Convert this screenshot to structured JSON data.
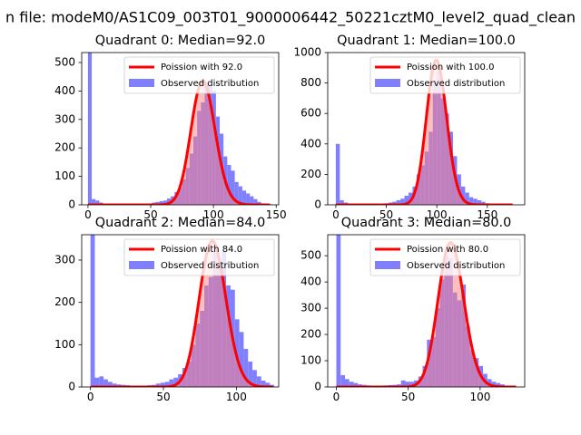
{
  "suptitle": "n file: modeM0/AS1C09_003T01_9000006442_50221cztM0_level2_quad_clean",
  "colors": {
    "hist": "#8080ff",
    "poisson": "#ff0000",
    "poisson_fill": "#ff8080"
  },
  "chart_data": [
    {
      "type": "bar",
      "title": "Quadrant 0: Median=92.0",
      "median": 92.0,
      "legend": {
        "line": "Poission with 92.0",
        "hist": "Observed distribution",
        "placement": "upper right"
      },
      "xlim": [
        -5,
        152
      ],
      "ylim": [
        0,
        535
      ],
      "xticks": [
        0,
        50,
        100,
        150
      ],
      "yticks": [
        0,
        100,
        200,
        300,
        400,
        500
      ],
      "bins": [
        [
          0,
          560
        ],
        [
          3,
          20
        ],
        [
          6,
          15
        ],
        [
          9,
          8
        ],
        [
          12,
          4
        ],
        [
          15,
          2
        ],
        [
          18,
          2
        ],
        [
          21,
          1
        ],
        [
          24,
          1
        ],
        [
          27,
          1
        ],
        [
          30,
          1
        ],
        [
          33,
          1
        ],
        [
          36,
          1
        ],
        [
          39,
          1
        ],
        [
          42,
          2
        ],
        [
          45,
          3
        ],
        [
          48,
          3
        ],
        [
          51,
          8
        ],
        [
          54,
          10
        ],
        [
          57,
          13
        ],
        [
          60,
          15
        ],
        [
          63,
          22
        ],
        [
          66,
          30
        ],
        [
          69,
          45
        ],
        [
          72,
          60
        ],
        [
          75,
          90
        ],
        [
          78,
          130
        ],
        [
          81,
          180
        ],
        [
          84,
          240
        ],
        [
          87,
          330
        ],
        [
          90,
          360
        ],
        [
          93,
          430
        ],
        [
          96,
          420
        ],
        [
          99,
          400
        ],
        [
          102,
          310
        ],
        [
          105,
          250
        ],
        [
          108,
          170
        ],
        [
          111,
          140
        ],
        [
          114,
          120
        ],
        [
          117,
          80
        ],
        [
          120,
          65
        ],
        [
          123,
          50
        ],
        [
          126,
          40
        ],
        [
          129,
          30
        ],
        [
          132,
          20
        ],
        [
          135,
          10
        ],
        [
          138,
          5
        ],
        [
          141,
          3
        ],
        [
          144,
          2
        ]
      ],
      "poisson_peak": 435,
      "poisson_x": [
        0,
        145
      ]
    },
    {
      "type": "bar",
      "title": "Quadrant 1: Median=100.0",
      "median": 100.0,
      "legend": {
        "line": "Poission with 100.0",
        "hist": "Observed distribution",
        "placement": "upper right"
      },
      "xlim": [
        -8,
        187
      ],
      "ylim": [
        0,
        1000
      ],
      "xticks": [
        0,
        50,
        100,
        150
      ],
      "yticks": [
        0,
        200,
        400,
        600,
        800,
        1000
      ],
      "bins": [
        [
          0,
          400
        ],
        [
          4,
          30
        ],
        [
          8,
          15
        ],
        [
          12,
          8
        ],
        [
          16,
          5
        ],
        [
          20,
          4
        ],
        [
          24,
          3
        ],
        [
          28,
          3
        ],
        [
          32,
          3
        ],
        [
          36,
          3
        ],
        [
          40,
          4
        ],
        [
          44,
          6
        ],
        [
          48,
          10
        ],
        [
          52,
          15
        ],
        [
          56,
          20
        ],
        [
          60,
          30
        ],
        [
          64,
          40
        ],
        [
          68,
          60
        ],
        [
          72,
          80
        ],
        [
          76,
          120
        ],
        [
          80,
          200
        ],
        [
          84,
          260
        ],
        [
          88,
          350
        ],
        [
          92,
          480
        ],
        [
          96,
          820
        ],
        [
          100,
          880
        ],
        [
          104,
          700
        ],
        [
          108,
          600
        ],
        [
          112,
          480
        ],
        [
          116,
          320
        ],
        [
          120,
          200
        ],
        [
          124,
          120
        ],
        [
          128,
          80
        ],
        [
          132,
          50
        ],
        [
          136,
          40
        ],
        [
          140,
          30
        ],
        [
          144,
          20
        ],
        [
          148,
          10
        ],
        [
          152,
          6
        ],
        [
          156,
          4
        ],
        [
          160,
          3
        ],
        [
          164,
          2
        ],
        [
          168,
          1
        ],
        [
          172,
          1
        ]
      ],
      "poisson_peak": 950,
      "poisson_x": [
        0,
        175
      ]
    },
    {
      "type": "bar",
      "title": "Quadrant 2: Median=84.0",
      "median": 84.0,
      "legend": {
        "line": "Poission with 84.0",
        "hist": "Observed distribution",
        "placement": "upper right"
      },
      "xlim": [
        -6,
        129
      ],
      "ylim": [
        0,
        360
      ],
      "xticks": [
        0,
        50,
        100
      ],
      "yticks": [
        0,
        100,
        200,
        300
      ],
      "bins": [
        [
          0,
          370
        ],
        [
          3,
          22
        ],
        [
          6,
          25
        ],
        [
          9,
          18
        ],
        [
          12,
          12
        ],
        [
          15,
          8
        ],
        [
          18,
          6
        ],
        [
          21,
          5
        ],
        [
          24,
          4
        ],
        [
          27,
          3
        ],
        [
          30,
          3
        ],
        [
          33,
          3
        ],
        [
          36,
          3
        ],
        [
          39,
          4
        ],
        [
          42,
          5
        ],
        [
          45,
          8
        ],
        [
          48,
          10
        ],
        [
          51,
          12
        ],
        [
          54,
          18
        ],
        [
          57,
          22
        ],
        [
          60,
          30
        ],
        [
          63,
          45
        ],
        [
          66,
          60
        ],
        [
          69,
          100
        ],
        [
          72,
          150
        ],
        [
          75,
          180
        ],
        [
          78,
          240
        ],
        [
          81,
          260
        ],
        [
          84,
          320
        ],
        [
          87,
          280
        ],
        [
          90,
          320
        ],
        [
          93,
          240
        ],
        [
          96,
          230
        ],
        [
          99,
          160
        ],
        [
          102,
          130
        ],
        [
          105,
          90
        ],
        [
          108,
          60
        ],
        [
          111,
          40
        ],
        [
          114,
          25
        ],
        [
          117,
          15
        ],
        [
          120,
          10
        ],
        [
          123,
          5
        ]
      ],
      "poisson_peak": 345,
      "poisson_x": [
        0,
        125
      ]
    },
    {
      "type": "bar",
      "title": "Quadrant 3: Median=80.0",
      "median": 80.0,
      "legend": {
        "line": "Poission with 80.0",
        "hist": "Observed distribution",
        "placement": "upper right"
      },
      "xlim": [
        -6,
        131
      ],
      "ylim": [
        0,
        580
      ],
      "xticks": [
        0,
        50,
        100
      ],
      "yticks": [
        0,
        100,
        200,
        300,
        400,
        500
      ],
      "bins": [
        [
          0,
          590
        ],
        [
          3,
          45
        ],
        [
          6,
          30
        ],
        [
          9,
          20
        ],
        [
          12,
          15
        ],
        [
          15,
          10
        ],
        [
          18,
          8
        ],
        [
          21,
          6
        ],
        [
          24,
          5
        ],
        [
          27,
          5
        ],
        [
          30,
          5
        ],
        [
          33,
          6
        ],
        [
          36,
          7
        ],
        [
          39,
          8
        ],
        [
          42,
          10
        ],
        [
          45,
          25
        ],
        [
          48,
          20
        ],
        [
          51,
          20
        ],
        [
          54,
          25
        ],
        [
          57,
          40
        ],
        [
          60,
          80
        ],
        [
          63,
          180
        ],
        [
          66,
          190
        ],
        [
          69,
          300
        ],
        [
          72,
          410
        ],
        [
          75,
          500
        ],
        [
          78,
          490
        ],
        [
          81,
          360
        ],
        [
          84,
          330
        ],
        [
          87,
          390
        ],
        [
          90,
          230
        ],
        [
          93,
          140
        ],
        [
          96,
          110
        ],
        [
          99,
          80
        ],
        [
          102,
          50
        ],
        [
          105,
          30
        ],
        [
          108,
          20
        ],
        [
          111,
          15
        ],
        [
          114,
          10
        ],
        [
          117,
          5
        ]
      ],
      "poisson_peak": 550,
      "poisson_x": [
        0,
        125
      ]
    }
  ]
}
